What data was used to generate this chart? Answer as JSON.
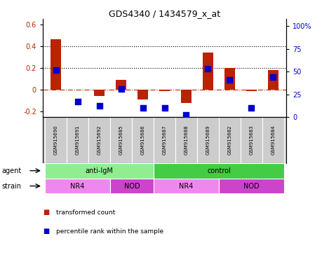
{
  "title": "GDS4340 / 1434579_x_at",
  "samples": [
    "GSM915690",
    "GSM915691",
    "GSM915692",
    "GSM915685",
    "GSM915686",
    "GSM915687",
    "GSM915688",
    "GSM915689",
    "GSM915682",
    "GSM915683",
    "GSM915684"
  ],
  "transformed_count": [
    0.46,
    0.0,
    -0.06,
    0.09,
    -0.09,
    -0.01,
    -0.12,
    0.34,
    0.2,
    -0.01,
    0.18
  ],
  "percentile_rank": [
    52,
    17,
    12,
    31,
    10,
    10,
    2.5,
    53,
    41,
    10,
    44
  ],
  "bar_color": "#bb2200",
  "dot_color": "#0000cc",
  "ylim_left": [
    -0.25,
    0.65
  ],
  "ylim_right": [
    0,
    108
  ],
  "yticks_left": [
    -0.2,
    0.0,
    0.2,
    0.4,
    0.6
  ],
  "ytick_labels_left": [
    "-0.2",
    "0",
    "0.2",
    "0.4",
    "0.6"
  ],
  "yticks_right": [
    0,
    25,
    50,
    75,
    100
  ],
  "ytick_labels_right": [
    "0",
    "25",
    "50",
    "75",
    "100%"
  ],
  "agent_groups": [
    {
      "label": "anti-IgM",
      "start": 0,
      "end": 5,
      "color": "#90ee90"
    },
    {
      "label": "control",
      "start": 5,
      "end": 11,
      "color": "#44cc44"
    }
  ],
  "strain_groups": [
    {
      "label": "NR4",
      "start": 0,
      "end": 3,
      "color": "#ee88ee"
    },
    {
      "label": "NOD",
      "start": 3,
      "end": 5,
      "color": "#cc44cc"
    },
    {
      "label": "NR4",
      "start": 5,
      "end": 8,
      "color": "#ee88ee"
    },
    {
      "label": "NOD",
      "start": 8,
      "end": 11,
      "color": "#cc44cc"
    }
  ],
  "agent_label": "agent",
  "strain_label": "strain",
  "legend_items": [
    {
      "label": "transformed count",
      "color": "#bb2200"
    },
    {
      "label": "percentile rank within the sample",
      "color": "#0000cc"
    }
  ],
  "background_color": "#ffffff",
  "zero_line_color": "#cc2200",
  "dot_size": 28,
  "bar_width": 0.5,
  "xlim": [
    -0.6,
    10.6
  ]
}
